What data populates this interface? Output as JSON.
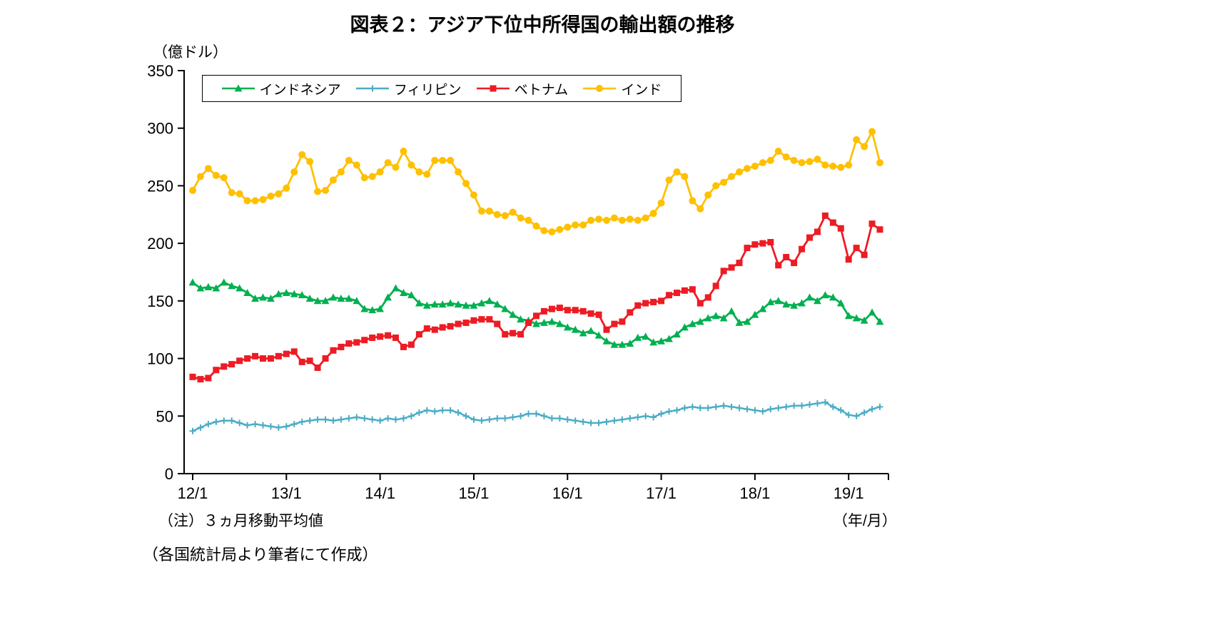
{
  "title": "図表２：アジア下位中所得国の輸出額の推移",
  "y_axis_unit": "（億ドル）",
  "x_axis_unit": "（年/月）",
  "note": "（注）３ヵ月移動平均値",
  "source": "（各国統計局より筆者にて作成）",
  "chart_data": {
    "type": "line",
    "title": "図表２：アジア下位中所得国の輸出額の推移",
    "ylabel": "（億ドル）",
    "xlabel": "（年/月）",
    "ylim": [
      0,
      350
    ],
    "y_ticks": [
      0,
      50,
      100,
      150,
      200,
      250,
      300,
      350
    ],
    "x_tick_labels": [
      "12/1",
      "13/1",
      "14/1",
      "15/1",
      "16/1",
      "17/1",
      "18/1",
      "19/1"
    ],
    "x_start": "12/1",
    "x_end": "19/5",
    "x_interval": "monthly",
    "grid": false,
    "legend_position": "top",
    "series": [
      {
        "key": "indonesia",
        "name": "インドネシア",
        "color": "#00B050",
        "marker": "triangle",
        "values": [
          166,
          161,
          162,
          161,
          166,
          163,
          161,
          157,
          152,
          153,
          152,
          156,
          157,
          156,
          155,
          152,
          150,
          150,
          153,
          152,
          152,
          150,
          143,
          142,
          143,
          153,
          161,
          157,
          155,
          148,
          146,
          147,
          147,
          148,
          147,
          146,
          146,
          148,
          150,
          147,
          143,
          138,
          134,
          133,
          130,
          131,
          132,
          130,
          127,
          125,
          122,
          124,
          120,
          115,
          112,
          112,
          113,
          118,
          119,
          114,
          115,
          117,
          121,
          127,
          130,
          132,
          135,
          137,
          135,
          141,
          131,
          132,
          138,
          143,
          149,
          150,
          147,
          146,
          148,
          153,
          150,
          155,
          153,
          148,
          137,
          135,
          133,
          140,
          132
        ]
      },
      {
        "key": "philippines",
        "name": "フィリピン",
        "color": "#4BACC6",
        "marker": "plus",
        "values": [
          37,
          40,
          43,
          45,
          46,
          46,
          44,
          42,
          43,
          42,
          41,
          40,
          41,
          43,
          45,
          46,
          47,
          47,
          46,
          47,
          48,
          49,
          48,
          47,
          46,
          48,
          47,
          48,
          50,
          53,
          55,
          54,
          55,
          55,
          53,
          50,
          47,
          46,
          47,
          48,
          48,
          49,
          50,
          52,
          52,
          50,
          48,
          48,
          47,
          46,
          45,
          44,
          44,
          45,
          46,
          47,
          48,
          49,
          50,
          49,
          52,
          54,
          55,
          57,
          58,
          57,
          57,
          58,
          59,
          58,
          57,
          56,
          55,
          54,
          56,
          57,
          58,
          59,
          59,
          60,
          61,
          62,
          58,
          55,
          51,
          50,
          53,
          56,
          58
        ]
      },
      {
        "key": "vietnam",
        "name": "ベトナム",
        "color": "#ED1C24",
        "marker": "square",
        "values": [
          84,
          82,
          83,
          90,
          93,
          95,
          98,
          100,
          102,
          100,
          100,
          102,
          104,
          106,
          97,
          98,
          92,
          100,
          107,
          110,
          113,
          114,
          116,
          118,
          119,
          120,
          118,
          110,
          112,
          121,
          126,
          125,
          127,
          128,
          130,
          131,
          133,
          134,
          134,
          130,
          121,
          122,
          121,
          131,
          137,
          141,
          143,
          144,
          142,
          142,
          141,
          139,
          138,
          125,
          130,
          132,
          140,
          146,
          148,
          149,
          150,
          155,
          157,
          159,
          160,
          148,
          153,
          163,
          176,
          179,
          183,
          196,
          199,
          200,
          201,
          181,
          188,
          183,
          195,
          205,
          210,
          224,
          218,
          213,
          186,
          196,
          190,
          217,
          212
        ]
      },
      {
        "key": "india",
        "name": "インド",
        "color": "#FFC000",
        "marker": "circle",
        "values": [
          246,
          258,
          265,
          259,
          257,
          244,
          243,
          237,
          237,
          238,
          241,
          243,
          248,
          262,
          277,
          271,
          245,
          246,
          255,
          262,
          272,
          268,
          257,
          258,
          262,
          270,
          266,
          280,
          268,
          262,
          260,
          272,
          272,
          272,
          262,
          252,
          242,
          228,
          228,
          225,
          224,
          227,
          222,
          220,
          215,
          211,
          210,
          212,
          214,
          216,
          216,
          220,
          221,
          220,
          222,
          220,
          221,
          220,
          222,
          226,
          235,
          255,
          262,
          258,
          237,
          230,
          242,
          250,
          253,
          258,
          262,
          265,
          267,
          270,
          272,
          280,
          275,
          272,
          270,
          271,
          273,
          268,
          267,
          266,
          268,
          290,
          284,
          297,
          270
        ]
      }
    ]
  }
}
